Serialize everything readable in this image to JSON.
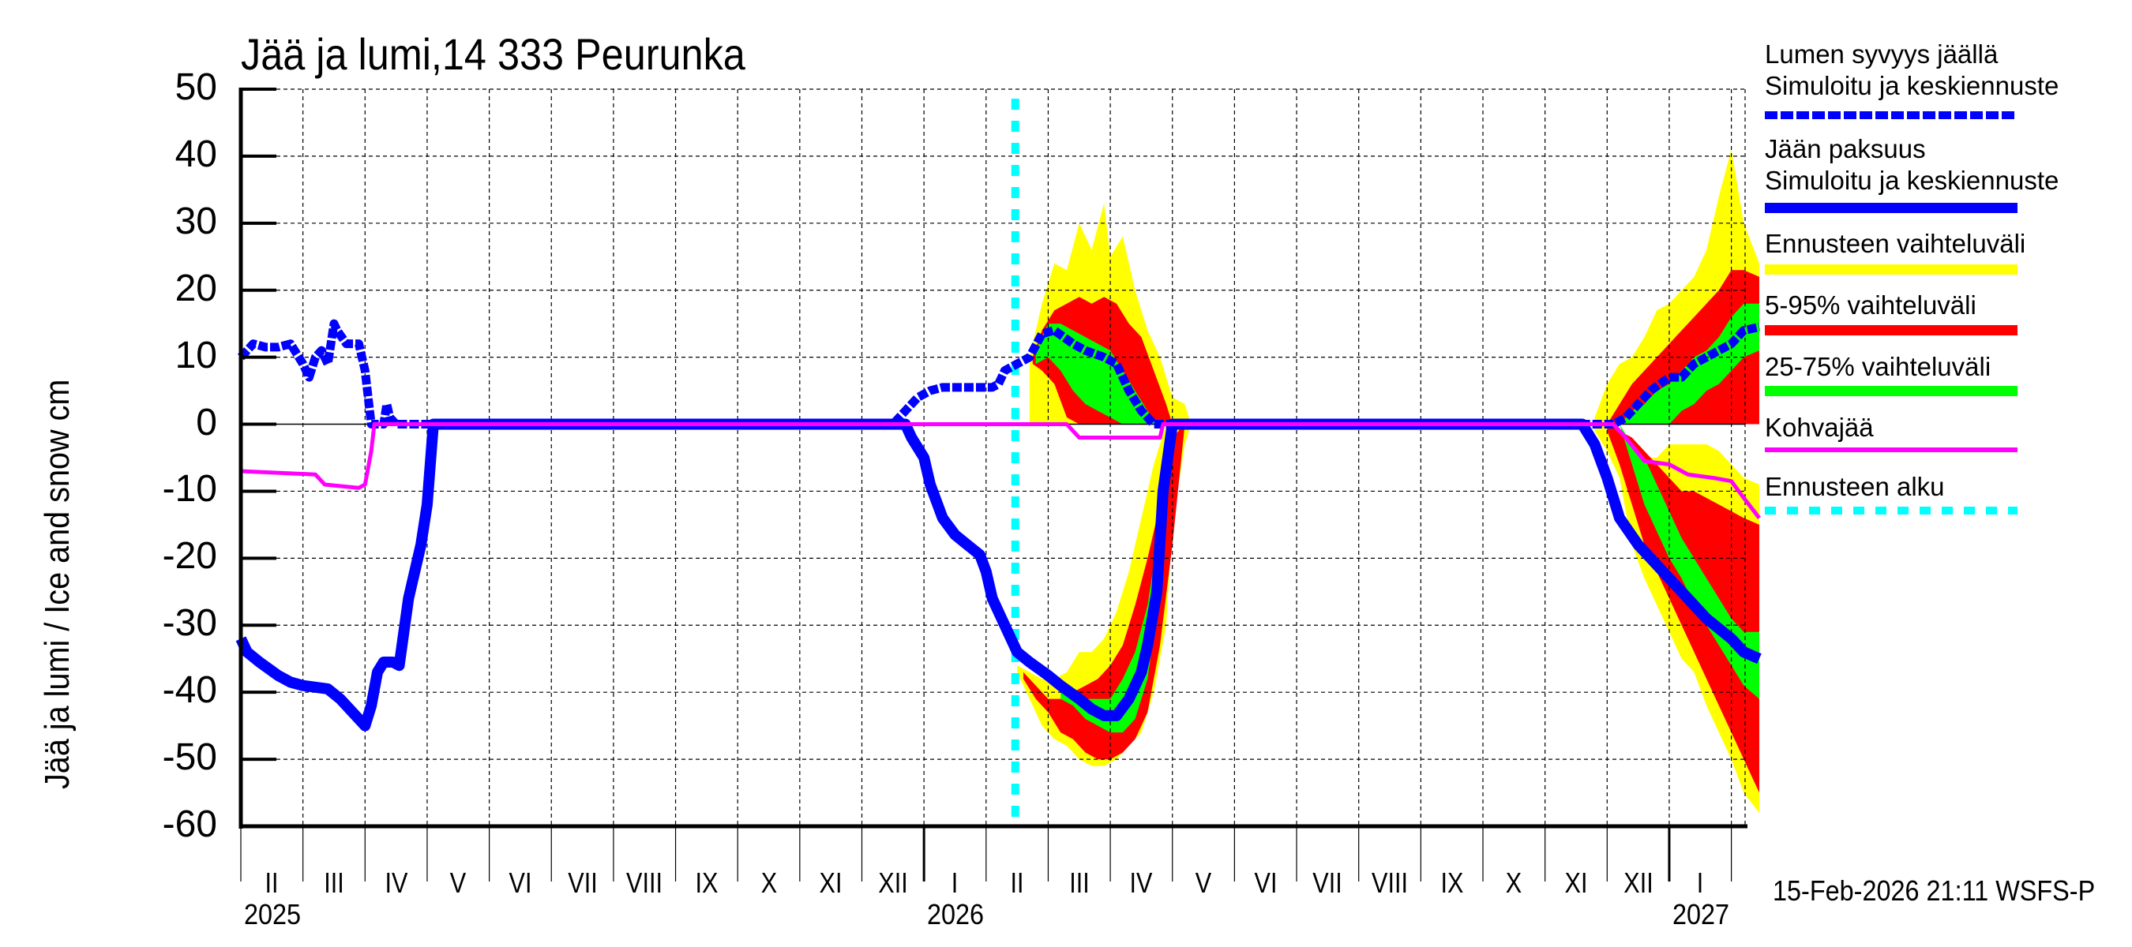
{
  "chart_data": {
    "type": "line",
    "title": "Jää ja lumi,14 333 Peurunka",
    "ylabel": "Jää ja lumi / Ice and snow    cm",
    "xlabel": "",
    "ylim": [
      -60,
      50
    ],
    "yticks": [
      50,
      40,
      30,
      20,
      10,
      0,
      -10,
      -20,
      -30,
      -40,
      -50,
      -60
    ],
    "grid": true,
    "legend_position": "right",
    "x_unit": "months since 2025-02-01",
    "xlim": [
      0,
      24.45
    ],
    "month_ticks": [
      {
        "m": 0,
        "label": "II"
      },
      {
        "m": 1,
        "label": "III"
      },
      {
        "m": 2,
        "label": "IV"
      },
      {
        "m": 3,
        "label": "V"
      },
      {
        "m": 4,
        "label": "VI"
      },
      {
        "m": 5,
        "label": "VII"
      },
      {
        "m": 6,
        "label": "VIII"
      },
      {
        "m": 7,
        "label": "IX"
      },
      {
        "m": 8,
        "label": "X"
      },
      {
        "m": 9,
        "label": "XI"
      },
      {
        "m": 10,
        "label": "XII"
      },
      {
        "m": 11,
        "label": "I"
      },
      {
        "m": 12,
        "label": "II"
      },
      {
        "m": 13,
        "label": "III"
      },
      {
        "m": 14,
        "label": "IV"
      },
      {
        "m": 15,
        "label": "V"
      },
      {
        "m": 16,
        "label": "VI"
      },
      {
        "m": 17,
        "label": "VII"
      },
      {
        "m": 18,
        "label": "VIII"
      },
      {
        "m": 19,
        "label": "IX"
      },
      {
        "m": 20,
        "label": "X"
      },
      {
        "m": 21,
        "label": "XI"
      },
      {
        "m": 22,
        "label": "XII"
      },
      {
        "m": 23,
        "label": "I"
      },
      {
        "m": 24,
        "label": ""
      }
    ],
    "year_labels": [
      {
        "m": 0,
        "label": "2025"
      },
      {
        "m": 11,
        "label": "2026"
      },
      {
        "m": 23,
        "label": "2027"
      }
    ],
    "forecast_start_m": 12.47,
    "series": [
      {
        "name": "Lumen syvyys jäällä — Simuloitu ja keskiennuste",
        "color": "#0000ff",
        "style": "dashed",
        "x": [
          0,
          0.2,
          0.4,
          0.6,
          0.8,
          1.0,
          1.1,
          1.2,
          1.3,
          1.4,
          1.5,
          1.55,
          1.7,
          1.9,
          2.0,
          2.05,
          2.1,
          2.15,
          2.2,
          2.3,
          2.35,
          2.4,
          2.5,
          2.6,
          3.0,
          6,
          9,
          10.5,
          10.7,
          10.9,
          11.1,
          11.3,
          11.6,
          11.9,
          12.1,
          12.2,
          12.3,
          12.5,
          12.7,
          12.9,
          13.1,
          13.4,
          13.6,
          13.9,
          14.1,
          14.3,
          14.5,
          14.7,
          15,
          18,
          21,
          21.7,
          21.9,
          22.1,
          22.3,
          22.5,
          22.7,
          23.0,
          23.2,
          23.4,
          23.6,
          23.8,
          24.0,
          24.2,
          24.45
        ],
        "y": [
          10,
          12,
          11.5,
          11.5,
          12,
          9,
          7,
          10,
          11,
          9,
          15,
          14,
          12,
          12,
          8,
          4,
          0,
          0,
          0,
          0,
          3,
          1,
          0,
          0,
          0,
          0,
          0,
          0,
          2,
          4,
          5,
          5.5,
          5.5,
          5.5,
          5.5,
          6,
          8,
          9,
          10,
          13.5,
          14,
          12,
          11,
          10,
          9,
          5,
          2,
          0,
          0,
          0,
          0,
          0,
          0,
          0,
          1,
          3,
          5,
          7,
          7,
          9,
          10,
          11,
          12,
          14,
          14.5
        ]
      },
      {
        "name": "Jään paksuus — Simuloitu ja keskiennuste",
        "color": "#0000ff",
        "style": "solid",
        "x": [
          0,
          0.1,
          0.3,
          0.6,
          0.8,
          1.0,
          1.4,
          1.6,
          1.8,
          1.9,
          2.0,
          2.1,
          2.2,
          2.3,
          2.45,
          2.55,
          2.7,
          2.9,
          3.0,
          3.05,
          3.1,
          6,
          9,
          10.7,
          10.8,
          11.0,
          11.1,
          11.3,
          11.5,
          11.7,
          11.9,
          12.0,
          12.1,
          12.3,
          12.5,
          12.7,
          13.0,
          13.2,
          13.5,
          13.7,
          13.9,
          14.1,
          14.3,
          14.5,
          14.6,
          14.75,
          14.85,
          15,
          18,
          21,
          21.6,
          21.8,
          22.0,
          22.2,
          22.5,
          22.8,
          23.2,
          23.6,
          24.0,
          24.2,
          24.45
        ],
        "y": [
          -32,
          -34,
          -35.5,
          -37.5,
          -38.5,
          -39,
          -39.5,
          -41,
          -43,
          -44,
          -45,
          -42,
          -37,
          -35.5,
          -35.5,
          -36,
          -26,
          -18,
          -12,
          -6,
          0,
          0,
          0,
          0,
          -2,
          -5,
          -9,
          -14,
          -16.5,
          -18,
          -19.5,
          -22,
          -26,
          -30,
          -34,
          -35.5,
          -37.5,
          -39,
          -41,
          -42.5,
          -43.5,
          -43.5,
          -41,
          -37,
          -33,
          -25,
          -10,
          0,
          0,
          0,
          0,
          -3,
          -8,
          -14,
          -18,
          -21,
          -25,
          -29,
          -32,
          -34,
          -35
        ]
      },
      {
        "name": "Kohvajää",
        "color": "#ff00ff",
        "style": "solid",
        "x": [
          0,
          1.2,
          1.35,
          1.9,
          2.0,
          2.1,
          2.15,
          6,
          9,
          13.3,
          13.5,
          14.0,
          14.8,
          14.85,
          15,
          18,
          21,
          22.1,
          22.3,
          22.6,
          23.0,
          23.3,
          23.7,
          24.0,
          24.2,
          24.45
        ],
        "y": [
          -7,
          -7.5,
          -9,
          -9.5,
          -9,
          -4,
          0,
          0,
          0,
          0,
          -2,
          -2,
          -2,
          0,
          0,
          0,
          0,
          0,
          -2,
          -5.5,
          -6,
          -7.5,
          -8,
          -8.5,
          -11,
          -14
        ]
      }
    ],
    "bands": [
      {
        "name": "Ennusteen vaihteluväli",
        "color": "#ffff00",
        "segments": [
          {
            "x": [
              12.7,
              12.9,
              13.1,
              13.3,
              13.5,
              13.7,
              13.9,
              14.0,
              14.2,
              14.4,
              14.6,
              14.8,
              15.0,
              15.2,
              15.3
            ],
            "upper": [
              10,
              18,
              24,
              23,
              30,
              26,
              33,
              25,
              28,
              20,
              14,
              10,
              4,
              3,
              0
            ],
            "lower": [
              0,
              0,
              0,
              0,
              0,
              0,
              0,
              0,
              0,
              0,
              0,
              0,
              0,
              0,
              0
            ]
          },
          {
            "x": [
              12.5,
              12.7,
              12.9,
              13.1,
              13.3,
              13.5,
              13.7,
              13.9,
              14.1,
              14.3,
              14.5,
              14.7,
              14.9,
              15.0,
              15.2,
              15.3
            ],
            "upper": [
              -36,
              -37,
              -38,
              -38,
              -37,
              -34,
              -34,
              -32,
              -28,
              -22,
              -14,
              -6,
              0,
              0,
              0,
              0
            ],
            "lower": [
              -37,
              -41,
              -45,
              -47,
              -48,
              -50,
              -51,
              -51,
              -50,
              -48,
              -46,
              -40,
              -30,
              -15,
              -3,
              0
            ]
          },
          {
            "x": [
              21.8,
              22.0,
              22.2,
              22.4,
              22.6,
              22.8,
              23.0,
              23.2,
              23.4,
              23.6,
              23.8,
              24.0,
              24.2,
              24.45
            ],
            "upper": [
              1,
              6,
              9,
              10,
              13,
              17,
              18,
              20,
              22,
              26,
              34,
              41,
              30,
              24
            ],
            "lower": [
              0,
              0,
              0,
              0,
              0,
              0,
              0,
              0,
              0,
              0,
              0,
              0,
              0,
              0
            ]
          },
          {
            "x": [
              21.8,
              22.0,
              22.2,
              22.4,
              22.6,
              22.8,
              23.0,
              23.2,
              23.4,
              23.6,
              23.8,
              24.0,
              24.2,
              24.45
            ],
            "upper": [
              0,
              0,
              -2,
              -3,
              -5,
              -5,
              -3,
              -3,
              -3,
              -3,
              -4,
              -6,
              -8,
              -9
            ],
            "lower": [
              -1,
              -4,
              -8,
              -18,
              -23,
              -27,
              -31,
              -35,
              -37,
              -42,
              -46,
              -50,
              -55,
              -58
            ]
          }
        ]
      },
      {
        "name": "5-95% vaihteluväli",
        "color": "#ff0000",
        "segments": [
          {
            "x": [
              12.75,
              12.9,
              13.1,
              13.3,
              13.5,
              13.7,
              13.9,
              14.1,
              14.3,
              14.5,
              14.7,
              14.9,
              15.0
            ],
            "upper": [
              10,
              14,
              17,
              18,
              19,
              18,
              19,
              18,
              15,
              13,
              8,
              3,
              0
            ],
            "lower": [
              9,
              8,
              6,
              1,
              0,
              0,
              0,
              0,
              0,
              0,
              0,
              0,
              0
            ]
          },
          {
            "x": [
              12.6,
              12.8,
              13.0,
              13.2,
              13.4,
              13.6,
              13.8,
              14.0,
              14.2,
              14.4,
              14.6,
              14.8,
              15.0,
              15.2
            ],
            "upper": [
              -37,
              -39,
              -41,
              -41,
              -40,
              -39,
              -38,
              -36,
              -33,
              -27,
              -20,
              -12,
              -2,
              0
            ],
            "lower": [
              -38,
              -41,
              -43,
              -46,
              -47,
              -49,
              -50,
              -50,
              -49,
              -47,
              -43,
              -33,
              -18,
              0
            ]
          },
          {
            "x": [
              22.0,
              22.2,
              22.4,
              22.6,
              22.8,
              23.0,
              23.2,
              23.4,
              23.6,
              23.8,
              24.0,
              24.2,
              24.45
            ],
            "upper": [
              0,
              3,
              6,
              8,
              10,
              12,
              14,
              16,
              18,
              20,
              23,
              23,
              22
            ],
            "lower": [
              0,
              0,
              0,
              0,
              0,
              0,
              0,
              0,
              0,
              0,
              0,
              0,
              0
            ]
          },
          {
            "x": [
              22.0,
              22.2,
              22.4,
              22.6,
              22.8,
              23.0,
              23.2,
              23.4,
              23.6,
              23.8,
              24.0,
              24.2,
              24.45
            ],
            "upper": [
              0,
              -1,
              -2,
              -4,
              -6,
              -8,
              -10,
              -10,
              -11,
              -12,
              -13,
              -14,
              -15
            ],
            "lower": [
              -1,
              -6,
              -12,
              -18,
              -22,
              -26,
              -30,
              -34,
              -38,
              -42,
              -46,
              -50,
              -55
            ]
          }
        ]
      },
      {
        "name": "25-75% vaihteluväli",
        "color": "#00ff00",
        "segments": [
          {
            "x": [
              12.8,
              13.0,
              13.2,
              13.4,
              13.6,
              13.8,
              14.0,
              14.2,
              14.4,
              14.6,
              14.75
            ],
            "upper": [
              11,
              15,
              15,
              14,
              13,
              12,
              11,
              8,
              5,
              2,
              0
            ],
            "lower": [
              9,
              10,
              8,
              5,
              3,
              2,
              1,
              0,
              0,
              0,
              0
            ]
          },
          {
            "x": [
              13.2,
              13.4,
              13.6,
              13.8,
              14.0,
              14.2,
              14.4,
              14.6,
              14.8,
              14.95
            ],
            "upper": [
              -40,
              -41,
              -41,
              -41,
              -41,
              -38,
              -34,
              -27,
              -15,
              0
            ],
            "lower": [
              -41,
              -42,
              -44,
              -45,
              -46,
              -46,
              -44,
              -38,
              -25,
              0
            ]
          },
          {
            "x": [
              22.2,
              22.4,
              22.6,
              22.8,
              23.0,
              23.2,
              23.4,
              23.6,
              23.8,
              24.0,
              24.2,
              24.45
            ],
            "upper": [
              0,
              2,
              3,
              5,
              6,
              8,
              10,
              11,
              13,
              16,
              18,
              18
            ],
            "lower": [
              0,
              0,
              0,
              0,
              0,
              2,
              3,
              5,
              6,
              8,
              10,
              11
            ]
          },
          {
            "x": [
              22.2,
              22.4,
              22.6,
              22.8,
              23.0,
              23.2,
              23.4,
              23.6,
              23.8,
              24.0,
              24.2,
              24.45
            ],
            "upper": [
              0,
              -3,
              -5,
              -9,
              -13,
              -17,
              -20,
              -23,
              -26,
              -29,
              -31,
              -31
            ],
            "lower": [
              0,
              -6,
              -12,
              -16,
              -20,
              -23,
              -27,
              -30,
              -33,
              -36,
              -39,
              -41
            ]
          }
        ]
      }
    ]
  },
  "legend": {
    "items": [
      {
        "line1": "Lumen syvyys jäällä",
        "line2": "Simuloitu ja keskiennuste",
        "color": "#0000ff",
        "style": "dashed"
      },
      {
        "line1": "Jään paksuus",
        "line2": "Simuloitu ja keskiennuste",
        "color": "#0000ff",
        "style": "solid"
      },
      {
        "line1": "Ennusteen vaihteluväli",
        "color": "#ffff00",
        "style": "solid"
      },
      {
        "line1": "5-95% vaihteluväli",
        "color": "#ff0000",
        "style": "solid"
      },
      {
        "line1": "25-75% vaihteluväli",
        "color": "#00ff00",
        "style": "solid"
      },
      {
        "line1": "Kohvajää",
        "color": "#ff00ff",
        "style": "thin"
      },
      {
        "line1": "Ennusteen alku",
        "color": "#00ffff",
        "style": "dotted"
      }
    ]
  },
  "footer": {
    "timestamp": "15-Feb-2026 21:11 WSFS-P"
  }
}
